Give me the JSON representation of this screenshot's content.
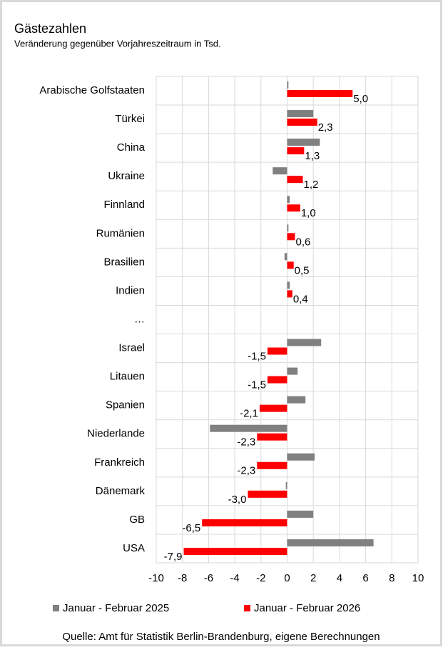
{
  "chart_data": {
    "type": "barh",
    "title": "Gästezahlen",
    "subtitle": "Veränderung gegenüber Vorjahreszeitraum in Tsd.",
    "source": "Quelle: Amt für Statistik Berlin-Brandenburg, eigene Berechnungen",
    "categories": [
      "Arabische Golfstaaten",
      "Türkei",
      "China",
      "Ukraine",
      "Finnland",
      "Rumänien",
      "Brasilien",
      "Indien",
      "…",
      "Israel",
      "Litauen",
      "Spanien",
      "Niederlande",
      "Frankreich",
      "Dänemark",
      "GB",
      "USA"
    ],
    "series": [
      {
        "name": "Januar - Februar 2025",
        "color": "#808080",
        "values": [
          0.1,
          2.0,
          2.5,
          -1.1,
          0.2,
          0.1,
          -0.2,
          0.2,
          null,
          2.6,
          0.8,
          1.4,
          -5.9,
          2.1,
          -0.1,
          2.0,
          6.6
        ]
      },
      {
        "name": "Januar - Februar 2026",
        "color": "#ff0000",
        "values": [
          5.0,
          2.3,
          1.3,
          1.2,
          1.0,
          0.6,
          0.5,
          0.4,
          null,
          -1.5,
          -1.5,
          -2.1,
          -2.3,
          -2.3,
          -3.0,
          -6.5,
          -7.9
        ],
        "value_labels": [
          "5,0",
          "2,3",
          "1,3",
          "1,2",
          "1,0",
          "0,6",
          "0,5",
          "0,4",
          null,
          "-1,5",
          "-1,5",
          "-2,1",
          "-2,3",
          "-2,3",
          "-3,0",
          "-6,5",
          "-7,9"
        ]
      }
    ],
    "xlim": [
      -10,
      10
    ],
    "xticks": [
      -10,
      -8,
      -6,
      -4,
      -2,
      0,
      2,
      4,
      6,
      8,
      10
    ],
    "grid": true
  }
}
